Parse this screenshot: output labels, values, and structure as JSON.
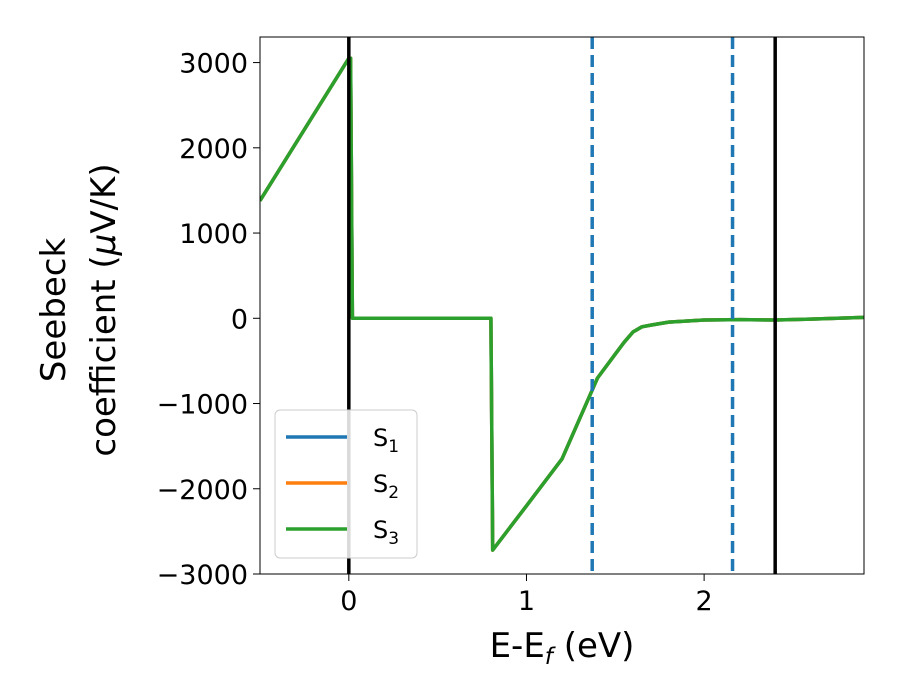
{
  "chart_data": {
    "type": "line",
    "xlabel": "E-E",
    "xlabel_sub": "f",
    "xlabel_unit": " (eV)",
    "ylabel_line1": "Seebeck",
    "ylabel_line2": "coefficient  (",
    "ylabel_mu": "μ",
    "ylabel_unit": "V/K)",
    "xlim": [
      -0.5,
      2.9
    ],
    "ylim": [
      -3000,
      3300
    ],
    "xticks": [
      0,
      1,
      2
    ],
    "xtick_labels": [
      "0",
      "1",
      "2"
    ],
    "yticks": [
      3000,
      2000,
      1000,
      0,
      -1000,
      -2000,
      -3000
    ],
    "ytick_labels": [
      "3000",
      "2000",
      "1000",
      "0",
      "−1000",
      "−2000",
      "−3000"
    ],
    "grid": false,
    "legend_position": "lower-left",
    "colors": {
      "S1": "#1f77b4",
      "S2": "#ff7f0e",
      "S3": "#2ca02c",
      "vline": "#000000",
      "dashed": "#1f77b4"
    },
    "series": [
      {
        "name": "S",
        "sub": "1",
        "color": "#1f77b4",
        "x": [
          -0.5,
          0.0,
          0.01,
          0.02,
          0.8,
          0.81,
          1.0,
          1.2,
          1.4,
          1.5,
          1.55,
          1.6,
          1.65,
          1.7,
          1.8,
          2.0,
          2.2,
          2.4,
          2.6,
          2.9
        ],
        "y": [
          1380,
          3050,
          3050,
          0,
          0,
          -2720,
          -2200,
          -1650,
          -700,
          -420,
          -280,
          -160,
          -100,
          -80,
          -45,
          -20,
          -15,
          -20,
          -10,
          10
        ]
      },
      {
        "name": "S",
        "sub": "2",
        "color": "#ff7f0e",
        "x": [
          -0.5,
          0.0,
          0.01,
          0.02,
          0.8,
          0.81,
          1.0,
          1.2,
          1.4,
          1.5,
          1.55,
          1.6,
          1.65,
          1.7,
          1.8,
          2.0,
          2.2,
          2.4,
          2.6,
          2.9
        ],
        "y": [
          1380,
          3050,
          3050,
          0,
          0,
          -2720,
          -2200,
          -1650,
          -700,
          -420,
          -280,
          -160,
          -100,
          -80,
          -45,
          -20,
          -15,
          -20,
          -10,
          10
        ]
      },
      {
        "name": "S",
        "sub": "3",
        "color": "#2ca02c",
        "x": [
          -0.5,
          0.0,
          0.01,
          0.02,
          0.8,
          0.81,
          1.0,
          1.2,
          1.4,
          1.5,
          1.55,
          1.6,
          1.65,
          1.7,
          1.8,
          2.0,
          2.2,
          2.4,
          2.6,
          2.9
        ],
        "y": [
          1380,
          3050,
          3050,
          0,
          0,
          -2720,
          -2200,
          -1650,
          -700,
          -420,
          -280,
          -160,
          -100,
          -80,
          -45,
          -20,
          -15,
          -20,
          -10,
          10
        ]
      }
    ],
    "vlines_solid": [
      0.0,
      2.4
    ],
    "vlines_dashed": [
      1.37,
      2.16
    ]
  }
}
